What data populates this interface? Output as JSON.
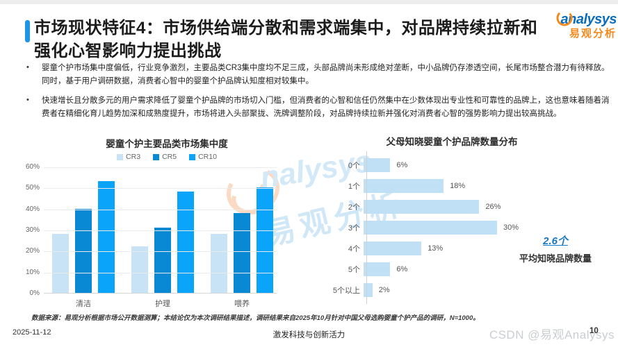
{
  "header": {
    "title": "市场现状特征4：市场供给端分散和需求端集中，对品牌持续拉新和强化心智影响力提出挑战",
    "logo": {
      "brand_en": "analysys",
      "brand_cn": "易观分析",
      "brand_blue": "#0a6ebd",
      "brand_orange": "#f28a1e"
    }
  },
  "bullets": [
    "婴童个护市场集中度偏低，行业竞争激烈，主要品类CR3集中度均不足三成，头部品牌尚未形成绝对垄断，中小品牌仍存渗透空间，长尾市场整合潜力有待释放。同时，基于用户调研数据，消费者心智中的婴童个护品牌认知度相对较集中。",
    "快速增长且分散多元的用户需求降低了婴童个护品牌的市场切入门槛，但消费者的心智和信任仍然集中在少数体现出专业性和可靠性的品牌上，这也意味着随着消费者在精细化育儿趋势加深和成熟度提升，市场将进入头部聚拢、洗牌调整阶段，对品牌持续拉新并强化对消费者心智的强势影响力提出较高挑战。"
  ],
  "chart_data": [
    {
      "type": "bar",
      "title": "婴童个护主要品类市场集中度",
      "categories": [
        "清洁",
        "护理",
        "喂养"
      ],
      "series": [
        {
          "name": "CR3",
          "color": "#c9e3f6",
          "values": [
            28,
            22,
            28
          ]
        },
        {
          "name": "CR5",
          "color": "#0989d3",
          "values": [
            40,
            31,
            38
          ]
        },
        {
          "name": "CR10",
          "color": "#0aa5fb",
          "values": [
            53,
            48,
            50
          ]
        }
      ],
      "ylabel": "",
      "ylim": [
        0,
        60
      ],
      "yticks": [
        "60%",
        "50%",
        "40%",
        "30%",
        "20%",
        "10%",
        "0%"
      ],
      "grid": true,
      "legend_position": "top"
    },
    {
      "type": "bar",
      "orientation": "horizontal",
      "title": "父母知晓婴童个护品牌数量分布",
      "categories": [
        "0个",
        "1个",
        "2个",
        "3个",
        "4个",
        "5个",
        "5个以上"
      ],
      "values": [
        6,
        18,
        26,
        30,
        13,
        6,
        2
      ],
      "value_labels": [
        "6%",
        "18%",
        "26%",
        "30%",
        "13%",
        "6%",
        "2%"
      ],
      "bar_color": "#bfe0f5",
      "xlim": [
        0,
        32
      ],
      "grid": false,
      "annotation": {
        "value": "2.6个",
        "caption": "平均知晓品牌数量",
        "color": "#1779be"
      }
    }
  ],
  "watermark": {
    "text_en": "nalysys",
    "text_cn": "易观分析"
  },
  "footnote": "数据来源：易观分析根据市场公开数据测算；本结论仅为本次调研结果描述，调研结果来自2025年10月针对中国父母选购婴童个护产品的调研，N=1000。",
  "footer": {
    "date": "2025-11-12",
    "slogan": "激发科技与创新活力",
    "page_number": "10",
    "csdn_watermark": "CSDN @易观Analysys"
  }
}
